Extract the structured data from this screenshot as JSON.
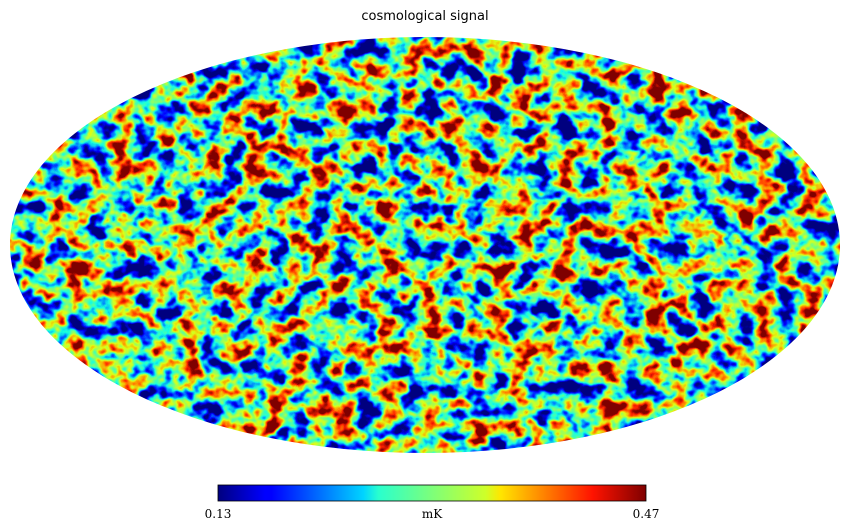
{
  "title": "cosmological signal",
  "colorbar": {
    "min": 0.13,
    "max": 0.47,
    "unit": "mK",
    "colormap": "jet"
  }
}
